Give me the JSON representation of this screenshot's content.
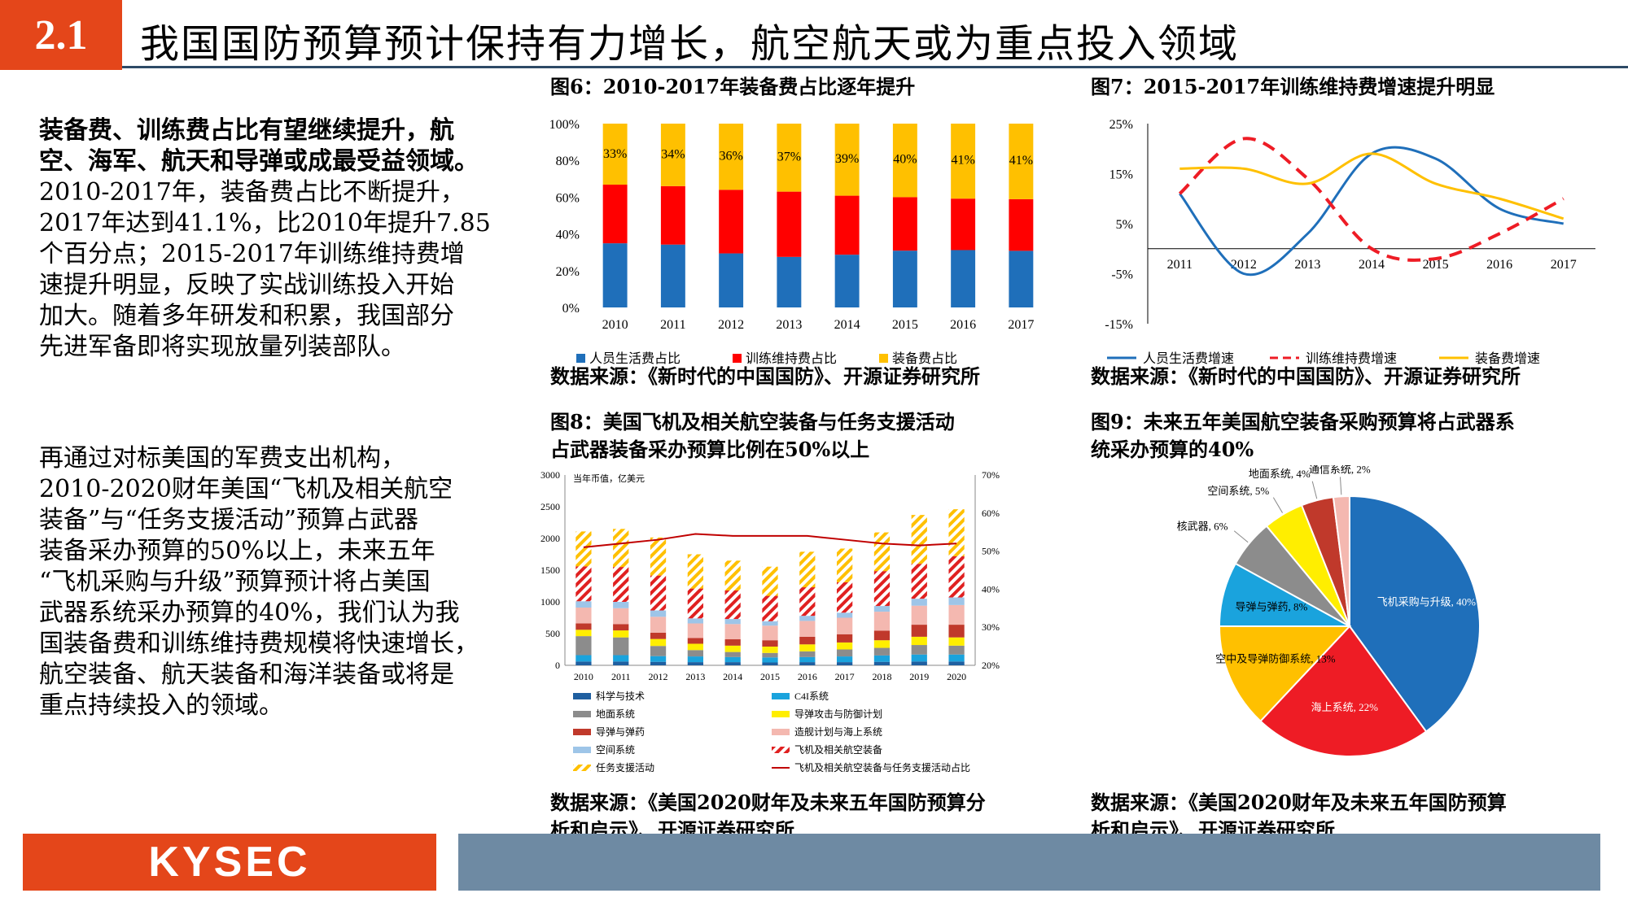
{
  "header": {
    "section_number": "2.1",
    "title": "我国国防预算预计保持有力增长，航空航天或为重点投入领域"
  },
  "text": {
    "p1_bold_line1": "装备费、训练费占比有望继续提升，航",
    "p1_bold_line2": "空、海军、航天和导弹或成最受益领域。",
    "p1_lines": [
      "2010-2017年，装备费占比不断提升，",
      "2017年达到41.1%，比2010年提升7.85",
      "个百分点；2015-2017年训练维持费增",
      "速提升明显，反映了实战训练投入开始",
      "加大。随着多年研发和积累，我国部分",
      "先进军备即将实现放量列装部队。"
    ],
    "p2_lines": [
      "再通过对标美国的军费支出机构，",
      "2010-2020财年美国“飞机及相关航空",
      "装备”与“任务支援活动”预算占武器",
      "装备采办预算的50%以上，未来五年",
      "“飞机采购与升级”预算预计将占美国",
      "武器系统采办预算的40%，我们认为我",
      "国装备费和训练维持费规模将快速增长，",
      "航空装备、航天装备和海洋装备或将是",
      "重点持续投入的领域。"
    ]
  },
  "figures": {
    "fig6_title": "图6：2010-2017年装备费占比逐年提升",
    "fig7_title": "图7：2015-2017年训练维持费增速提升明显",
    "fig8_title_line1": "图8：美国飞机及相关航空装备与任务支援活动",
    "fig8_title_line2": "占武器装备采办预算比例在50%以上",
    "fig9_title_line1": "图9：未来五年美国航空装备采购预算将占武器系",
    "fig9_title_line2": "统采办预算的40%",
    "source_fig6": "数据来源：《新时代的中国国防》、开源证券研究所",
    "source_fig7": "数据来源：《新时代的中国国防》、开源证券研究所",
    "source_fig8_line1": "数据来源：《美国2020财年及未来五年国防预算分",
    "source_fig8_line2": "析和启示》、开源证券研究所",
    "source_fig9_line1": "数据来源：《美国2020财年及未来五年国防预算",
    "source_fig9_line2": "析和启示》、开源证券研究所"
  },
  "footer": {
    "logo_text": "KYSEC"
  },
  "colors": {
    "accent": "#e4461a",
    "footer_bar": "#6e8aa3",
    "blue": "#1f6fba",
    "red": "#ff0000",
    "yellow": "#ffc000"
  },
  "chart_data": [
    {
      "id": "fig6",
      "type": "bar",
      "stacked": true,
      "categories": [
        "2010",
        "2011",
        "2012",
        "2013",
        "2014",
        "2015",
        "2016",
        "2017"
      ],
      "series": [
        {
          "name": "人员生活费占比",
          "color": "#1f6fba",
          "values": [
            34.9,
            34.2,
            29.4,
            27.5,
            28.7,
            30.9,
            31.2,
            30.8
          ]
        },
        {
          "name": "训练维持费占比",
          "color": "#ff0000",
          "values": [
            31.9,
            31.8,
            34.6,
            35.5,
            32.1,
            29.1,
            28.0,
            28.1
          ]
        },
        {
          "name": "装备费占比",
          "color": "#ffc000",
          "values": [
            33.2,
            34.0,
            36.0,
            37.0,
            39.2,
            40.0,
            40.8,
            41.1
          ]
        }
      ],
      "data_labels": [
        "33%",
        "34%",
        "36%",
        "37%",
        "39%",
        "40%",
        "41%",
        "41%"
      ],
      "yticks": [
        "0%",
        "20%",
        "40%",
        "60%",
        "80%",
        "100%"
      ],
      "ylim": [
        0,
        100
      ]
    },
    {
      "id": "fig7",
      "type": "line",
      "categories": [
        "2011",
        "2012",
        "2013",
        "2014",
        "2015",
        "2016",
        "2017"
      ],
      "series": [
        {
          "name": "人员生活费增速",
          "color": "#1f6fba",
          "dash": "solid",
          "values": [
            11,
            -5,
            3,
            19,
            18,
            8,
            5
          ]
        },
        {
          "name": "训练维持费增速",
          "color": "#ee1c25",
          "dash": "dashed",
          "values": [
            11,
            22,
            14,
            0,
            -2,
            3,
            10
          ]
        },
        {
          "name": "装备费增速",
          "color": "#ffc000",
          "dash": "solid",
          "values": [
            16,
            16,
            13,
            19,
            13,
            10,
            6
          ]
        }
      ],
      "yticks": [
        "-15%",
        "-5%",
        "5%",
        "15%",
        "25%"
      ],
      "ylim": [
        -15,
        25
      ]
    },
    {
      "id": "fig8",
      "type": "bar",
      "stacked": true,
      "unit_note": "当年币值，亿美元",
      "categories": [
        "2010",
        "2011",
        "2012",
        "2013",
        "2014",
        "2015",
        "2016",
        "2017",
        "2018",
        "2019",
        "2020"
      ],
      "series": [
        {
          "name": "科学与技术",
          "color": "#1f5fa0",
          "pattern": "solid",
          "values": [
            60,
            60,
            55,
            50,
            50,
            45,
            50,
            50,
            55,
            60,
            60
          ]
        },
        {
          "name": "C4I系统",
          "color": "#1aa3dd",
          "pattern": "solid",
          "values": [
            100,
            100,
            90,
            90,
            80,
            80,
            80,
            90,
            100,
            110,
            110
          ]
        },
        {
          "name": "地面系统",
          "color": "#8c8c8c",
          "pattern": "solid",
          "values": [
            300,
            280,
            160,
            100,
            80,
            70,
            90,
            110,
            120,
            150,
            140
          ]
        },
        {
          "name": "导弹攻击与防御计划",
          "color": "#ffee00",
          "pattern": "solid",
          "values": [
            100,
            110,
            110,
            100,
            100,
            100,
            110,
            110,
            120,
            130,
            130
          ]
        },
        {
          "name": "导弹与弹药",
          "color": "#c0392b",
          "pattern": "solid",
          "values": [
            100,
            100,
            100,
            90,
            100,
            100,
            120,
            130,
            150,
            190,
            200
          ]
        },
        {
          "name": "造舰计划与海上系统",
          "color": "#f4b8b0",
          "pattern": "solid",
          "values": [
            250,
            250,
            250,
            230,
            240,
            230,
            250,
            260,
            300,
            300,
            310
          ]
        },
        {
          "name": "空间系统",
          "color": "#9ec5e8",
          "pattern": "solid",
          "values": [
            100,
            100,
            100,
            80,
            80,
            70,
            80,
            80,
            90,
            110,
            120
          ]
        },
        {
          "name": "飞机及相关航空装备",
          "color": "#e02020",
          "pattern": "hatch-red",
          "values": [
            550,
            550,
            550,
            470,
            450,
            400,
            450,
            480,
            550,
            550,
            650
          ]
        },
        {
          "name": "任务支援活动",
          "color": "#ffc000",
          "pattern": "hatch-yellow",
          "values": [
            550,
            600,
            600,
            540,
            470,
            460,
            560,
            530,
            610,
            770,
            740
          ]
        }
      ],
      "line_series": {
        "name": "飞机及相关航空装备与任务支援活动占比",
        "color": "#c00000",
        "axis": "right",
        "values": [
          51,
          52,
          53,
          54.5,
          54,
          54,
          54,
          53,
          52,
          51.5,
          52
        ]
      },
      "yticks_left": [
        "0",
        "500",
        "1000",
        "1500",
        "2000",
        "2500",
        "3000"
      ],
      "ylim_left": [
        0,
        3000
      ],
      "yticks_right": [
        "20%",
        "30%",
        "40%",
        "50%",
        "60%",
        "70%"
      ],
      "ylim_right": [
        20,
        70
      ]
    },
    {
      "id": "fig9",
      "type": "pie",
      "slices": [
        {
          "label": "飞机采购与升级, 40%",
          "value": 40,
          "color": "#1f6fba"
        },
        {
          "label": "海上系统, 22%",
          "value": 22,
          "color": "#ee1c25"
        },
        {
          "label": "空中及导弹防御系统, 13%",
          "value": 13,
          "color": "#ffc000"
        },
        {
          "label": "导弹与弹药, 8%",
          "value": 8,
          "color": "#1aa3dd"
        },
        {
          "label": "核武器, 6%",
          "value": 6,
          "color": "#8c8c8c"
        },
        {
          "label": "空间系统, 5%",
          "value": 5,
          "color": "#ffee00"
        },
        {
          "label": "地面系统, 4%",
          "value": 4,
          "color": "#c0392b"
        },
        {
          "label": "通信系统, 2%",
          "value": 2,
          "color": "#f4b8b0"
        }
      ]
    }
  ]
}
